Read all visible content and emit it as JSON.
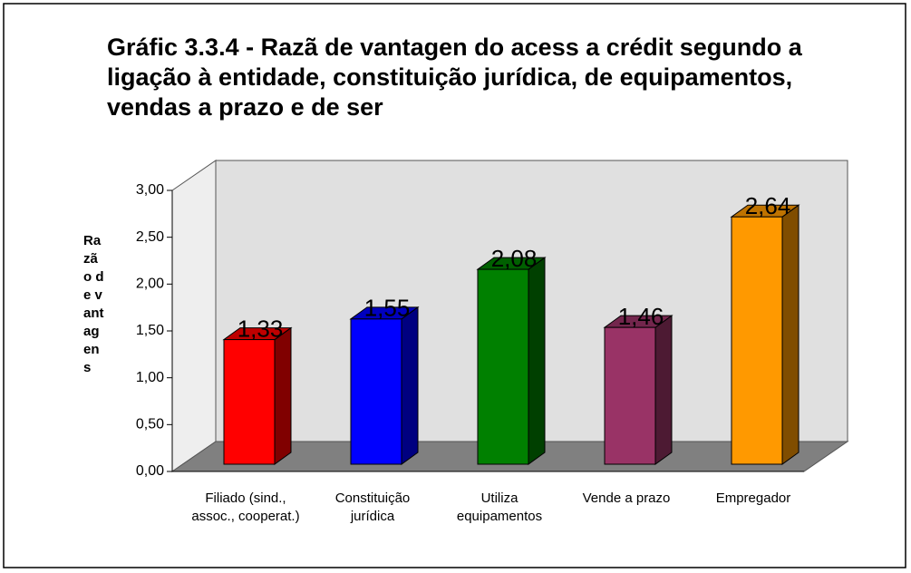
{
  "chart_data": {
    "type": "bar3d",
    "title": "Gráfic 3.3.4 - Razã de vantagen do acess a crédit segundo a ligação à entidade, constituição jurídica, de equipamentos, vendas a prazo e de ser",
    "y_label": "Razão de vantagens",
    "categories": [
      "Filiado (sind., assoc., cooperat.)",
      "Constituição jurídica",
      "Utiliza equipamentos",
      "Vende a prazo",
      "Empregador"
    ],
    "values": [
      1.33,
      1.55,
      2.08,
      1.46,
      2.64
    ],
    "value_labels": [
      "1,33",
      "1,55",
      "2,08",
      "1,46",
      "2,64"
    ],
    "colors": [
      "#ff0000",
      "#0000ff",
      "#008000",
      "#993366",
      "#ff9900"
    ],
    "ylim": [
      0,
      3
    ],
    "yticks": [
      {
        "value": 0,
        "label": "0,00"
      },
      {
        "value": 0.5,
        "label": "0,50"
      },
      {
        "value": 1,
        "label": "1,00"
      },
      {
        "value": 1.5,
        "label": "1,50"
      },
      {
        "value": 2,
        "label": "2,00"
      },
      {
        "value": 2.5,
        "label": "2,50"
      },
      {
        "value": 3,
        "label": "3,00"
      }
    ],
    "grid": false
  }
}
